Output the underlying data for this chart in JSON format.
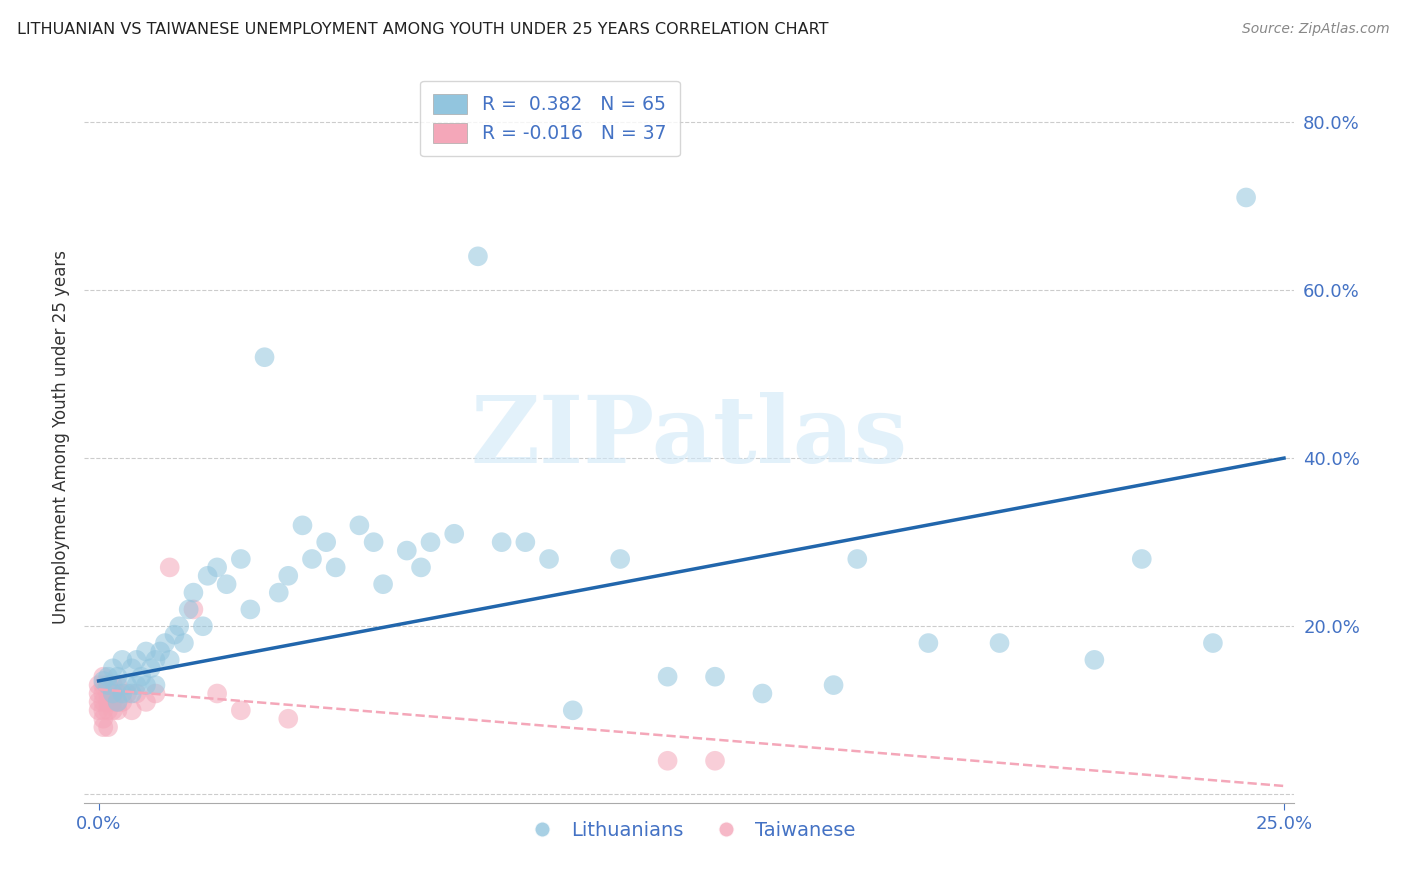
{
  "title": "LITHUANIAN VS TAIWANESE UNEMPLOYMENT AMONG YOUTH UNDER 25 YEARS CORRELATION CHART",
  "source": "Source: ZipAtlas.com",
  "ylabel": "Unemployment Among Youth under 25 years",
  "xlabel_lit": "Lithuanians",
  "xlabel_tai": "Taiwanese",
  "r_lit": 0.382,
  "n_lit": 65,
  "r_tai": -0.016,
  "n_tai": 37,
  "xlim": [
    -0.003,
    0.252
  ],
  "ylim": [
    -0.01,
    0.86
  ],
  "ytick_vals": [
    0.0,
    0.2,
    0.4,
    0.6,
    0.8
  ],
  "ytick_labels": [
    "",
    "20.0%",
    "40.0%",
    "60.0%",
    "80.0%"
  ],
  "xtick_vals": [
    0.0,
    0.25
  ],
  "xtick_labels": [
    "0.0%",
    "25.0%"
  ],
  "color_lit": "#92c5de",
  "color_tai": "#f4a7b9",
  "trendline_lit_color": "#2166ac",
  "trendline_tai_color": "#f4a7b9",
  "watermark": "ZIPatlas",
  "lit_trend_x0": 0.0,
  "lit_trend_y0": 0.135,
  "lit_trend_x1": 0.25,
  "lit_trend_y1": 0.4,
  "tai_trend_x0": 0.0,
  "tai_trend_y0": 0.125,
  "tai_trend_x1": 0.25,
  "tai_trend_y1": 0.01,
  "lit_x": [
    0.001,
    0.002,
    0.002,
    0.003,
    0.003,
    0.004,
    0.004,
    0.005,
    0.005,
    0.006,
    0.007,
    0.007,
    0.008,
    0.008,
    0.009,
    0.01,
    0.01,
    0.011,
    0.012,
    0.012,
    0.013,
    0.014,
    0.015,
    0.016,
    0.017,
    0.018,
    0.019,
    0.02,
    0.022,
    0.023,
    0.025,
    0.027,
    0.03,
    0.032,
    0.035,
    0.038,
    0.04,
    0.043,
    0.045,
    0.048,
    0.05,
    0.055,
    0.058,
    0.06,
    0.065,
    0.068,
    0.07,
    0.075,
    0.08,
    0.085,
    0.09,
    0.095,
    0.1,
    0.11,
    0.12,
    0.13,
    0.14,
    0.155,
    0.16,
    0.175,
    0.19,
    0.21,
    0.22,
    0.235,
    0.242
  ],
  "lit_y": [
    0.135,
    0.13,
    0.14,
    0.12,
    0.15,
    0.11,
    0.14,
    0.12,
    0.16,
    0.13,
    0.12,
    0.15,
    0.13,
    0.16,
    0.14,
    0.13,
    0.17,
    0.15,
    0.13,
    0.16,
    0.17,
    0.18,
    0.16,
    0.19,
    0.2,
    0.18,
    0.22,
    0.24,
    0.2,
    0.26,
    0.27,
    0.25,
    0.28,
    0.22,
    0.52,
    0.24,
    0.26,
    0.32,
    0.28,
    0.3,
    0.27,
    0.32,
    0.3,
    0.25,
    0.29,
    0.27,
    0.3,
    0.31,
    0.64,
    0.3,
    0.3,
    0.28,
    0.1,
    0.28,
    0.14,
    0.14,
    0.12,
    0.13,
    0.28,
    0.18,
    0.18,
    0.16,
    0.28,
    0.18,
    0.71
  ],
  "tai_x": [
    0.0,
    0.0,
    0.0,
    0.0,
    0.001,
    0.001,
    0.001,
    0.001,
    0.001,
    0.001,
    0.001,
    0.002,
    0.002,
    0.002,
    0.002,
    0.002,
    0.003,
    0.003,
    0.003,
    0.003,
    0.004,
    0.004,
    0.004,
    0.004,
    0.005,
    0.006,
    0.007,
    0.008,
    0.01,
    0.012,
    0.015,
    0.02,
    0.025,
    0.03,
    0.04,
    0.12,
    0.13
  ],
  "tai_y": [
    0.12,
    0.13,
    0.1,
    0.11,
    0.12,
    0.11,
    0.14,
    0.13,
    0.1,
    0.09,
    0.08,
    0.12,
    0.11,
    0.1,
    0.13,
    0.08,
    0.12,
    0.11,
    0.1,
    0.13,
    0.11,
    0.12,
    0.1,
    0.13,
    0.11,
    0.12,
    0.1,
    0.12,
    0.11,
    0.12,
    0.27,
    0.22,
    0.12,
    0.1,
    0.09,
    0.04,
    0.04
  ]
}
